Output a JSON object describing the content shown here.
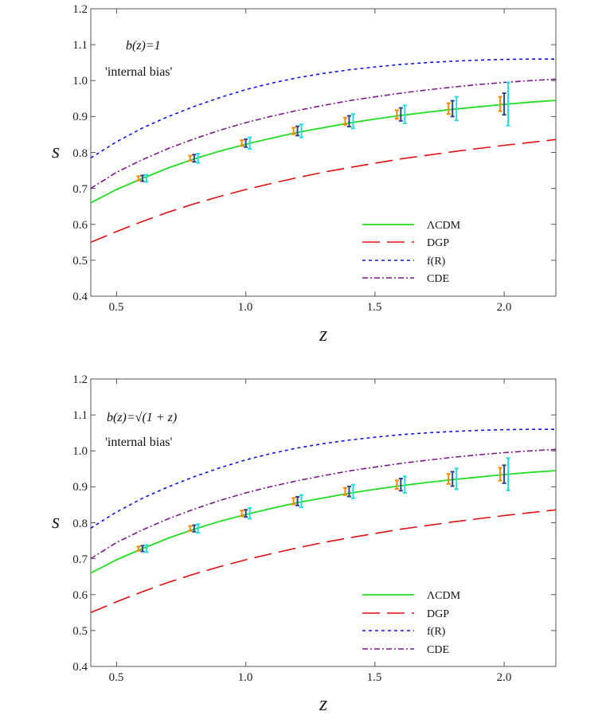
{
  "chart_data": [
    {
      "type": "line",
      "xlabel": "z",
      "ylabel": "s",
      "xlim": [
        0.4,
        2.2
      ],
      "ylim": [
        0.4,
        1.2
      ],
      "xticks": [
        "0.5",
        "1.0",
        "1.5",
        "2.0"
      ],
      "yticks": [
        "0.4",
        "0.5",
        "0.6",
        "0.7",
        "0.8",
        "0.9",
        "1.0",
        "1.1",
        "1.2"
      ],
      "annotation_bias": "b(z)=1",
      "annotation_note": "'internal bias'",
      "legend_position": "bottom-right",
      "colors": {
        "lcdm": "#22dd22",
        "dgp": "#dd1111",
        "fr": "#1111dd",
        "cde": "#7a1a8a"
      },
      "series": [
        {
          "name": "ΛCDM",
          "key": "lcdm",
          "style": "solid",
          "x": [
            0.4,
            0.5,
            0.6,
            0.7,
            0.8,
            0.9,
            1.0,
            1.1,
            1.2,
            1.3,
            1.4,
            1.5,
            1.6,
            1.7,
            1.8,
            1.9,
            2.0,
            2.1,
            2.2
          ],
          "y": [
            0.66,
            0.697,
            0.728,
            0.757,
            0.782,
            0.804,
            0.823,
            0.84,
            0.856,
            0.869,
            0.882,
            0.893,
            0.903,
            0.912,
            0.92,
            0.927,
            0.934,
            0.94,
            0.945
          ]
        },
        {
          "name": "DGP",
          "key": "dgp",
          "style": "longdash",
          "x": [
            0.4,
            0.5,
            0.6,
            0.7,
            0.8,
            0.9,
            1.0,
            1.1,
            1.2,
            1.3,
            1.4,
            1.5,
            1.6,
            1.7,
            1.8,
            1.9,
            2.0,
            2.1,
            2.2
          ],
          "y": [
            0.55,
            0.58,
            0.608,
            0.634,
            0.657,
            0.678,
            0.697,
            0.714,
            0.73,
            0.745,
            0.758,
            0.77,
            0.782,
            0.792,
            0.802,
            0.811,
            0.82,
            0.828,
            0.836
          ]
        },
        {
          "name": "f(R)",
          "key": "fr",
          "style": "dash",
          "x": [
            0.4,
            0.5,
            0.6,
            0.7,
            0.8,
            0.9,
            1.0,
            1.1,
            1.2,
            1.3,
            1.4,
            1.5,
            1.6,
            1.7,
            1.8,
            1.9,
            2.0,
            2.1,
            2.2
          ],
          "y": [
            0.785,
            0.83,
            0.868,
            0.9,
            0.928,
            0.953,
            0.975,
            0.993,
            1.008,
            1.02,
            1.03,
            1.038,
            1.045,
            1.05,
            1.054,
            1.057,
            1.059,
            1.06,
            1.06
          ]
        },
        {
          "name": "CDE",
          "key": "cde",
          "style": "dashdot",
          "x": [
            0.4,
            0.5,
            0.6,
            0.7,
            0.8,
            0.9,
            1.0,
            1.1,
            1.2,
            1.3,
            1.4,
            1.5,
            1.6,
            1.7,
            1.8,
            1.9,
            2.0,
            2.1,
            2.2
          ],
          "y": [
            0.7,
            0.745,
            0.78,
            0.811,
            0.838,
            0.862,
            0.883,
            0.901,
            0.917,
            0.931,
            0.944,
            0.955,
            0.965,
            0.974,
            0.982,
            0.989,
            0.995,
            1.0,
            1.004
          ]
        }
      ],
      "error_bars": [
        {
          "z": 0.6,
          "s": 0.728,
          "err": [
            0.006,
            0.008,
            0.01
          ]
        },
        {
          "z": 0.8,
          "s": 0.784,
          "err": [
            0.007,
            0.01,
            0.013
          ]
        },
        {
          "z": 1.0,
          "s": 0.826,
          "err": [
            0.008,
            0.011,
            0.016
          ]
        },
        {
          "z": 1.2,
          "s": 0.86,
          "err": [
            0.009,
            0.013,
            0.018
          ]
        },
        {
          "z": 1.4,
          "s": 0.887,
          "err": [
            0.01,
            0.015,
            0.02
          ]
        },
        {
          "z": 1.6,
          "s": 0.906,
          "err": [
            0.012,
            0.018,
            0.025
          ]
        },
        {
          "z": 1.8,
          "s": 0.922,
          "err": [
            0.015,
            0.022,
            0.033
          ]
        },
        {
          "z": 2.0,
          "s": 0.935,
          "err": [
            0.02,
            0.03,
            0.06
          ]
        }
      ],
      "errorbar_colors": [
        "#ff8800",
        "#334488",
        "#22dddd"
      ]
    },
    {
      "type": "line",
      "xlabel": "z",
      "ylabel": "s",
      "xlim": [
        0.4,
        2.2
      ],
      "ylim": [
        0.4,
        1.2
      ],
      "xticks": [
        "0.5",
        "1.0",
        "1.5",
        "2.0"
      ],
      "yticks": [
        "0.4",
        "0.5",
        "0.6",
        "0.7",
        "0.8",
        "0.9",
        "1.0",
        "1.1",
        "1.2"
      ],
      "annotation_bias": "b(z)=√(1 + z)",
      "annotation_note": "'internal bias'",
      "legend_position": "bottom-right",
      "colors": {
        "lcdm": "#22dd22",
        "dgp": "#dd1111",
        "fr": "#1111dd",
        "cde": "#7a1a8a"
      },
      "series": [
        {
          "name": "ΛCDM",
          "key": "lcdm",
          "style": "solid",
          "x": [
            0.4,
            0.5,
            0.6,
            0.7,
            0.8,
            0.9,
            1.0,
            1.1,
            1.2,
            1.3,
            1.4,
            1.5,
            1.6,
            1.7,
            1.8,
            1.9,
            2.0,
            2.1,
            2.2
          ],
          "y": [
            0.66,
            0.697,
            0.728,
            0.757,
            0.782,
            0.804,
            0.823,
            0.84,
            0.856,
            0.869,
            0.882,
            0.893,
            0.903,
            0.912,
            0.92,
            0.927,
            0.934,
            0.94,
            0.945
          ]
        },
        {
          "name": "DGP",
          "key": "dgp",
          "style": "longdash",
          "x": [
            0.4,
            0.5,
            0.6,
            0.7,
            0.8,
            0.9,
            1.0,
            1.1,
            1.2,
            1.3,
            1.4,
            1.5,
            1.6,
            1.7,
            1.8,
            1.9,
            2.0,
            2.1,
            2.2
          ],
          "y": [
            0.55,
            0.58,
            0.608,
            0.634,
            0.657,
            0.678,
            0.697,
            0.714,
            0.73,
            0.745,
            0.758,
            0.77,
            0.782,
            0.792,
            0.802,
            0.811,
            0.82,
            0.828,
            0.836
          ]
        },
        {
          "name": "f(R)",
          "key": "fr",
          "style": "dash",
          "x": [
            0.4,
            0.5,
            0.6,
            0.7,
            0.8,
            0.9,
            1.0,
            1.1,
            1.2,
            1.3,
            1.4,
            1.5,
            1.6,
            1.7,
            1.8,
            1.9,
            2.0,
            2.1,
            2.2
          ],
          "y": [
            0.785,
            0.83,
            0.868,
            0.9,
            0.928,
            0.953,
            0.975,
            0.993,
            1.008,
            1.02,
            1.03,
            1.038,
            1.045,
            1.05,
            1.054,
            1.057,
            1.059,
            1.06,
            1.06
          ]
        },
        {
          "name": "CDE",
          "key": "cde",
          "style": "dashdot",
          "x": [
            0.4,
            0.5,
            0.6,
            0.7,
            0.8,
            0.9,
            1.0,
            1.1,
            1.2,
            1.3,
            1.4,
            1.5,
            1.6,
            1.7,
            1.8,
            1.9,
            2.0,
            2.1,
            2.2
          ],
          "y": [
            0.7,
            0.745,
            0.78,
            0.811,
            0.838,
            0.862,
            0.883,
            0.901,
            0.917,
            0.931,
            0.944,
            0.955,
            0.965,
            0.974,
            0.982,
            0.989,
            0.995,
            1.0,
            1.004
          ]
        }
      ],
      "error_bars": [
        {
          "z": 0.6,
          "s": 0.728,
          "err": [
            0.006,
            0.008,
            0.01
          ]
        },
        {
          "z": 0.8,
          "s": 0.784,
          "err": [
            0.007,
            0.009,
            0.012
          ]
        },
        {
          "z": 1.0,
          "s": 0.826,
          "err": [
            0.008,
            0.01,
            0.015
          ]
        },
        {
          "z": 1.2,
          "s": 0.86,
          "err": [
            0.009,
            0.012,
            0.017
          ]
        },
        {
          "z": 1.4,
          "s": 0.887,
          "err": [
            0.01,
            0.014,
            0.019
          ]
        },
        {
          "z": 1.6,
          "s": 0.906,
          "err": [
            0.012,
            0.017,
            0.023
          ]
        },
        {
          "z": 1.8,
          "s": 0.922,
          "err": [
            0.014,
            0.02,
            0.029
          ]
        },
        {
          "z": 2.0,
          "s": 0.935,
          "err": [
            0.018,
            0.025,
            0.045
          ]
        }
      ],
      "errorbar_colors": [
        "#ff8800",
        "#334488",
        "#22dddd"
      ]
    }
  ]
}
